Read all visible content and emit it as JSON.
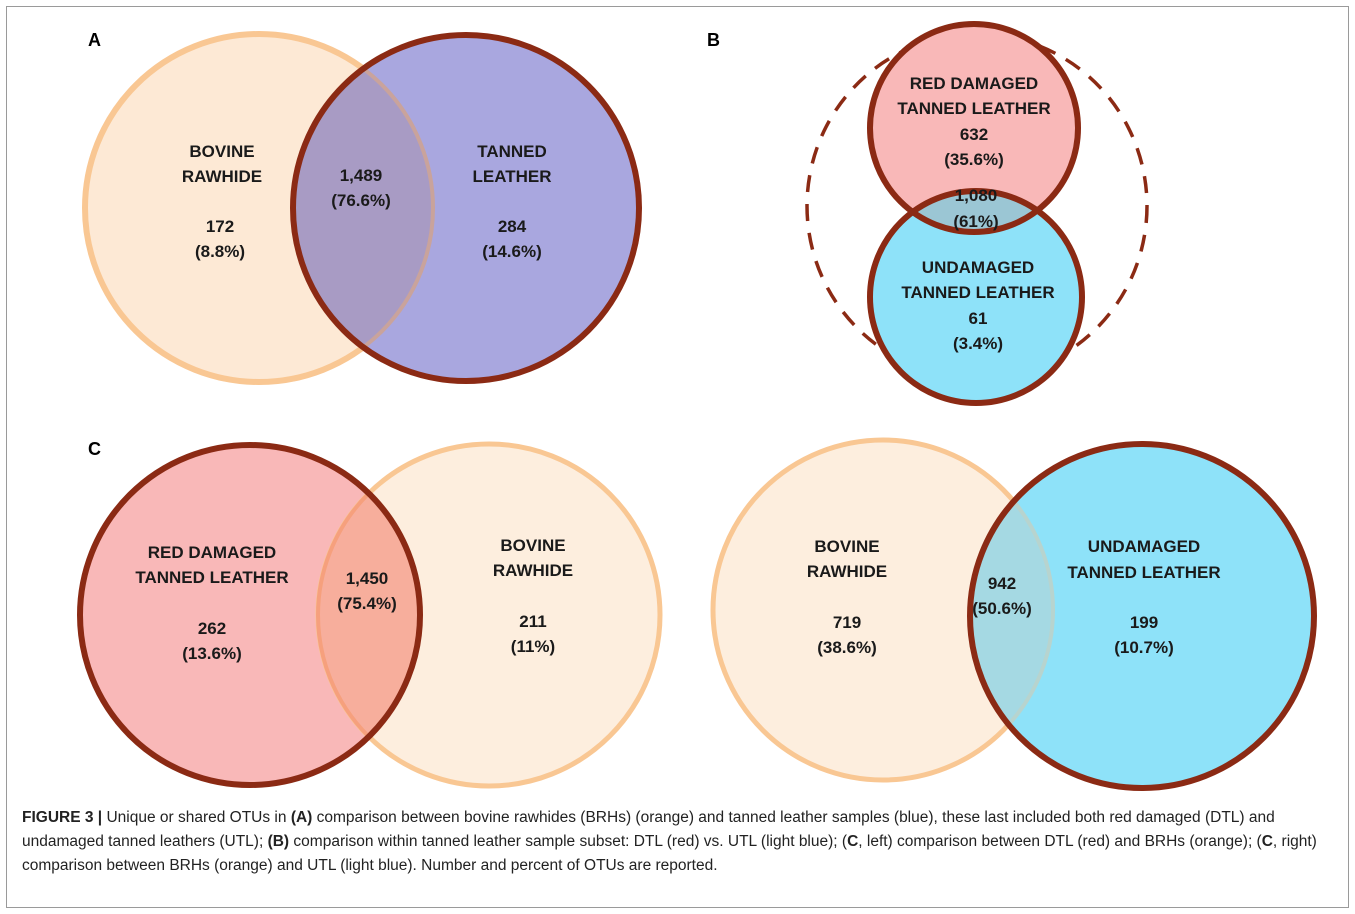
{
  "panels": {
    "A": {
      "letter": "A",
      "left": {
        "label1": "BOVINE",
        "label2": "RAWHIDE",
        "value": "172",
        "pct": "(8.8%)"
      },
      "shared": {
        "value": "1,489",
        "pct": "(76.6%)"
      },
      "right": {
        "label1": "TANNED",
        "label2": "LEATHER",
        "value": "284",
        "pct": "(14.6%)"
      },
      "colors": {
        "rawhide_fill": "#fde9d5",
        "rawhide_stroke": "#f9c793",
        "leather_fill": "#a9a7df",
        "leather_stroke": "#8b2a14",
        "overlap_fill": "#a89bc4"
      }
    },
    "B": {
      "letter": "B",
      "top": {
        "label1": "RED DAMAGED",
        "label2": "TANNED LEATHER",
        "value": "632",
        "pct": "(35.6%)"
      },
      "shared": {
        "value": "1,080",
        "pct": "(61%)"
      },
      "bottom": {
        "label1": "UNDAMAGED",
        "label2": "TANNED LEATHER",
        "value": "61",
        "pct": "(3.4%)"
      },
      "colors": {
        "red_fill": "#f9b8b8",
        "blue_fill": "#8ee2f9",
        "overlap_fill": "#9bc6d4",
        "stroke": "#8b2a14"
      }
    },
    "C_left": {
      "letter": "C",
      "left": {
        "label1": "RED DAMAGED",
        "label2": "TANNED LEATHER",
        "value": "262",
        "pct": "(13.6%)"
      },
      "shared": {
        "value": "1,450",
        "pct": "(75.4%)"
      },
      "right": {
        "label1": "BOVINE",
        "label2": "RAWHIDE",
        "value": "211",
        "pct": "(11%)"
      },
      "colors": {
        "red_fill": "#f9b8b8",
        "rawhide_fill": "#fdeede",
        "overlap_fill": "#f7ae9c"
      }
    },
    "C_right": {
      "left": {
        "label1": "BOVINE",
        "label2": "RAWHIDE",
        "value": "719",
        "pct": "(38.6%)"
      },
      "shared": {
        "value": "942",
        "pct": "(50.6%)"
      },
      "right": {
        "label1": "UNDAMAGED",
        "label2": "TANNED LEATHER",
        "value": "199",
        "pct": "(10.7%)"
      },
      "colors": {
        "rawhide_fill": "#fdeede",
        "blue_fill": "#8ee2f9",
        "overlap_fill": "#a5d9e3"
      }
    }
  },
  "caption": {
    "fig_label": "FIGURE 3 |",
    "t1": " Unique or shared OTUs in ",
    "b1": "(A)",
    "t2": " comparison between bovine rawhides (BRHs) (orange) and tanned leather samples (blue), these last included both red damaged (DTL) and undamaged tanned leathers (UTL); ",
    "b2": "(B)",
    "t3": " comparison within tanned leather sample subset: DTL (red) vs. UTL (light blue); (",
    "b3": "C",
    "t4": ", left) comparison between DTL (red) and BRHs (orange); (",
    "b4": "C",
    "t5": ", right) comparison between BRHs (orange) and UTL (light blue). Number and percent of OTUs are reported."
  }
}
